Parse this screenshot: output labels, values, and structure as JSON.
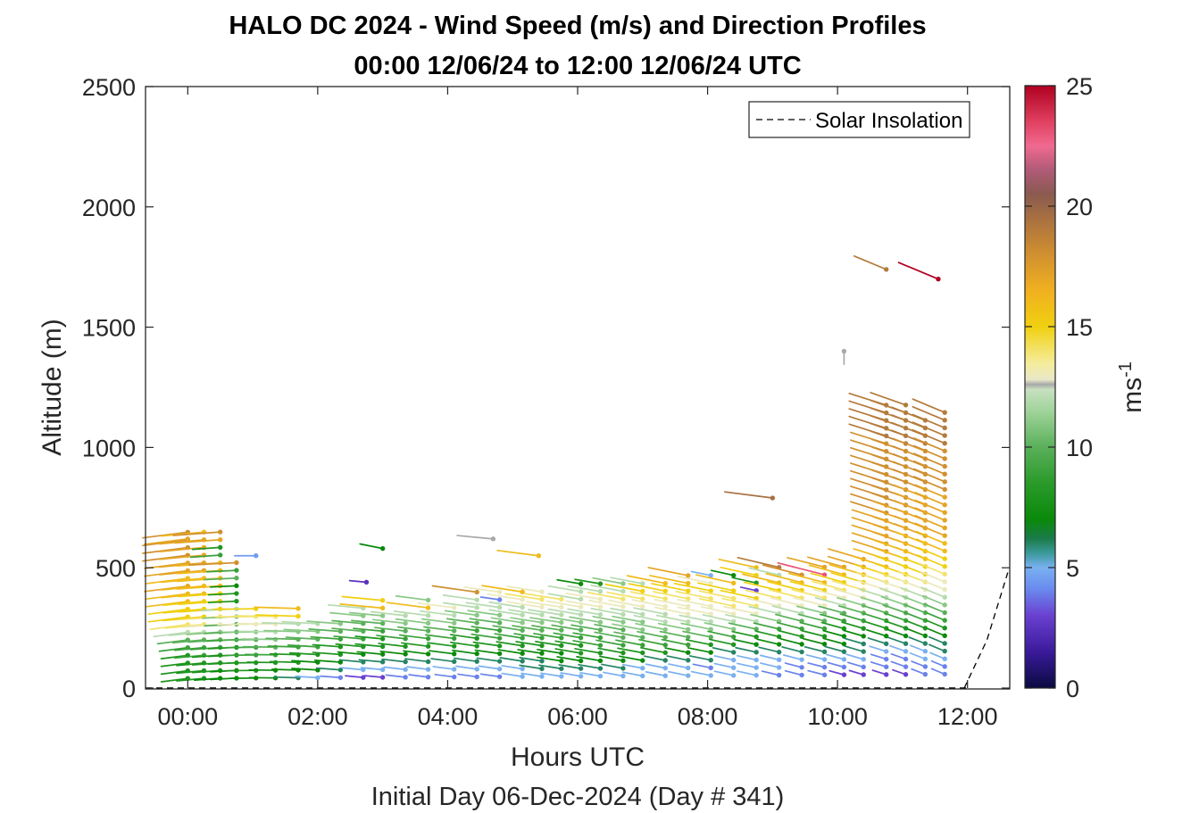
{
  "chart_data": {
    "type": "wind-barb-profile",
    "title": "HALO DC 2024 - Wind Speed (m/s) and Direction Profiles",
    "subtitle": "00:00 12/06/24 to 12:00 12/06/24  UTC",
    "xlabel": "Hours UTC",
    "ylabel": "Altitude (m)",
    "footer": "Initial Day 06-Dec-2024 (Day # 341)",
    "xlim_hours": [
      -0.65,
      12.65
    ],
    "ylim": [
      0,
      2500
    ],
    "x_ticks": [
      {
        "value": 0,
        "label": "00:00"
      },
      {
        "value": 2,
        "label": "02:00"
      },
      {
        "value": 4,
        "label": "04:00"
      },
      {
        "value": 6,
        "label": "06:00"
      },
      {
        "value": 8,
        "label": "08:00"
      },
      {
        "value": 10,
        "label": "10:00"
      },
      {
        "value": 12,
        "label": "12:00"
      }
    ],
    "y_ticks": [
      {
        "value": 0,
        "label": "0"
      },
      {
        "value": 500,
        "label": "500"
      },
      {
        "value": 1000,
        "label": "1000"
      },
      {
        "value": 1500,
        "label": "1500"
      },
      {
        "value": 2000,
        "label": "2000"
      },
      {
        "value": 2500,
        "label": "2500"
      }
    ],
    "legend": {
      "label": "Solar Insolation",
      "position": "top-right",
      "line_style": "dashed",
      "color": "#000000"
    },
    "colorbar": {
      "label": "ms",
      "label_exponent": "-1",
      "range": [
        0,
        25
      ],
      "ticks": [
        {
          "value": 0,
          "label": "0"
        },
        {
          "value": 5,
          "label": "5"
        },
        {
          "value": 10,
          "label": "10"
        },
        {
          "value": 15,
          "label": "15"
        },
        {
          "value": 20,
          "label": "20"
        },
        {
          "value": 25,
          "label": "25"
        }
      ],
      "stops": [
        {
          "value": 0,
          "color": "#0a0a40"
        },
        {
          "value": 1.5,
          "color": "#3a1a9a"
        },
        {
          "value": 3,
          "color": "#6a40d0"
        },
        {
          "value": 4.2,
          "color": "#6a8ff0"
        },
        {
          "value": 5,
          "color": "#7ab0f0"
        },
        {
          "value": 5.6,
          "color": "#3a9a9a"
        },
        {
          "value": 6.2,
          "color": "#1a7a4a"
        },
        {
          "value": 7,
          "color": "#0a8a0a"
        },
        {
          "value": 8.5,
          "color": "#2a9a2a"
        },
        {
          "value": 10,
          "color": "#5ab05a"
        },
        {
          "value": 11.5,
          "color": "#a0d49a"
        },
        {
          "value": 12.4,
          "color": "#c8e0c0"
        },
        {
          "value": 12.6,
          "color": "#a8a8a8"
        },
        {
          "value": 12.8,
          "color": "#e8e8c8"
        },
        {
          "value": 13.5,
          "color": "#f5ec9a"
        },
        {
          "value": 15,
          "color": "#f0d010"
        },
        {
          "value": 16.5,
          "color": "#f0b020"
        },
        {
          "value": 18,
          "color": "#d09030"
        },
        {
          "value": 19.5,
          "color": "#a87040"
        },
        {
          "value": 20.5,
          "color": "#8a5a50"
        },
        {
          "value": 21.5,
          "color": "#b05a78"
        },
        {
          "value": 22.5,
          "color": "#f06a90"
        },
        {
          "value": 23.5,
          "color": "#e04060"
        },
        {
          "value": 25,
          "color": "#b00020"
        }
      ]
    },
    "solar_insolation": [
      {
        "hour": 11.95,
        "alt": 0
      },
      {
        "hour": 12.3,
        "alt": 200
      },
      {
        "hour": 12.62,
        "alt": 480
      }
    ],
    "profiles": [
      {
        "hour": 0.0,
        "dir": 250,
        "speed": [
          8,
          8,
          8,
          8,
          9,
          10,
          12,
          14,
          15,
          15,
          16,
          16,
          17,
          16,
          17,
          17,
          18,
          18,
          18,
          18
        ]
      },
      {
        "hour": 0.25,
        "dir": 255,
        "speed": [
          8,
          8,
          8,
          9,
          9,
          10,
          12,
          14,
          15,
          15,
          15,
          16,
          16,
          16,
          17,
          17,
          17,
          17,
          17,
          16
        ]
      },
      {
        "hour": 0.5,
        "dir": 258,
        "speed": [
          7,
          8,
          8,
          8,
          9,
          10,
          11,
          13,
          14,
          15,
          15,
          15,
          16,
          16,
          16,
          16,
          9,
          8,
          17,
          18
        ]
      },
      {
        "hour": 0.75,
        "dir": 262,
        "speed": [
          7,
          7,
          8,
          8,
          8,
          9,
          10,
          10,
          11,
          12,
          8,
          8,
          7,
          10,
          9,
          18
        ]
      },
      {
        "hour": 1.05,
        "dir": 268,
        "speed": [
          7,
          8,
          8,
          9,
          9,
          10,
          11,
          13,
          14,
          15
        ]
      },
      {
        "hour": 1.35,
        "dir": 272,
        "speed": [
          7,
          7,
          8,
          9,
          10,
          11,
          12,
          13,
          14
        ]
      },
      {
        "hour": 1.7,
        "dir": 275,
        "speed": [
          6,
          7,
          8,
          8,
          9,
          10,
          11,
          12,
          15,
          16
        ]
      },
      {
        "hour": 2.0,
        "dir": 280,
        "speed": [
          5,
          7,
          7,
          8,
          9,
          10,
          11,
          12
        ]
      },
      {
        "hour": 2.35,
        "dir": 282,
        "speed": [
          4,
          6,
          7,
          8,
          8,
          9,
          10,
          11
        ]
      },
      {
        "hour": 2.7,
        "dir": 285,
        "speed": [
          3,
          5,
          6,
          7,
          8,
          9,
          10,
          10,
          11,
          12
        ]
      },
      {
        "hour": 3.0,
        "dir": 285,
        "speed": [
          3,
          5,
          6,
          7,
          8,
          8,
          9,
          10,
          11,
          16,
          15
        ]
      },
      {
        "hour": 3.35,
        "dir": 288,
        "speed": [
          4,
          5,
          6,
          7,
          8,
          9,
          10,
          11,
          12
        ]
      },
      {
        "hour": 3.7,
        "dir": 290,
        "speed": [
          4,
          5,
          6,
          7,
          8,
          9,
          10,
          11,
          12,
          16,
          11
        ]
      },
      {
        "hour": 4.1,
        "dir": 290,
        "speed": [
          4,
          5,
          6,
          7,
          8,
          9,
          10,
          11,
          12,
          13
        ]
      },
      {
        "hour": 4.45,
        "dir": 292,
        "speed": [
          4,
          5,
          6,
          7,
          8,
          8,
          9,
          10,
          11,
          12,
          12,
          18
        ]
      },
      {
        "hour": 4.8,
        "dir": 292,
        "speed": [
          4,
          5,
          6,
          7,
          8,
          9,
          9,
          10,
          11,
          12,
          4,
          13
        ]
      },
      {
        "hour": 5.15,
        "dir": 294,
        "speed": [
          5,
          5,
          6,
          7,
          8,
          9,
          10,
          11,
          12,
          12,
          13,
          16
        ]
      },
      {
        "hour": 5.45,
        "dir": 294,
        "speed": [
          5,
          6,
          6,
          7,
          8,
          9,
          10,
          11,
          12,
          13,
          14,
          13
        ]
      },
      {
        "hour": 5.75,
        "dir": 294,
        "speed": [
          5,
          6,
          7,
          7,
          8,
          9,
          10,
          11,
          12,
          13,
          14
        ]
      },
      {
        "hour": 6.05,
        "dir": 296,
        "speed": [
          5,
          6,
          7,
          8,
          8,
          9,
          10,
          11,
          12,
          13,
          12,
          12,
          7
        ]
      },
      {
        "hour": 6.35,
        "dir": 296,
        "speed": [
          5,
          6,
          7,
          8,
          9,
          9,
          10,
          11,
          12,
          13,
          13,
          12,
          8
        ]
      },
      {
        "hour": 6.7,
        "dir": 298,
        "speed": [
          5,
          6,
          7,
          8,
          9,
          10,
          10,
          11,
          12,
          13,
          14,
          12,
          11
        ]
      },
      {
        "hour": 7.0,
        "dir": 298,
        "speed": [
          5,
          5,
          7,
          8,
          9,
          10,
          11,
          11,
          12,
          13,
          14,
          15,
          12
        ]
      },
      {
        "hour": 7.35,
        "dir": 300,
        "speed": [
          5,
          5,
          6,
          8,
          9,
          10,
          11,
          12,
          12,
          13,
          14,
          15,
          16
        ]
      },
      {
        "hour": 7.7,
        "dir": 300,
        "speed": [
          5,
          5,
          6,
          7,
          9,
          10,
          11,
          12,
          13,
          13,
          14,
          15,
          16,
          17
        ]
      },
      {
        "hour": 8.05,
        "dir": 300,
        "speed": [
          5,
          4,
          6,
          7,
          8,
          10,
          11,
          12,
          13,
          13,
          14,
          15,
          13,
          5
        ]
      },
      {
        "hour": 8.4,
        "dir": 302,
        "speed": [
          5,
          5,
          5,
          6,
          8,
          9,
          11,
          12,
          13,
          14,
          14,
          15,
          16,
          7
        ]
      },
      {
        "hour": 8.75,
        "dir": 302,
        "speed": [
          5,
          5,
          5,
          6,
          7,
          8,
          10,
          12,
          13,
          14,
          15,
          3,
          8,
          15,
          16
        ]
      },
      {
        "hour": 9.1,
        "dir": 304,
        "speed": [
          4,
          5,
          5,
          6,
          7,
          8,
          9,
          11,
          12,
          13,
          14,
          15,
          16,
          12,
          19
        ]
      },
      {
        "hour": 9.45,
        "dir": 306,
        "speed": [
          4,
          4,
          5,
          6,
          7,
          8,
          9,
          10,
          12,
          13,
          14,
          15,
          16,
          18
        ]
      },
      {
        "hour": 9.8,
        "dir": 306,
        "speed": [
          4,
          4,
          5,
          6,
          7,
          8,
          9,
          10,
          11,
          13,
          14,
          15,
          16,
          23,
          17
        ]
      },
      {
        "hour": 10.1,
        "dir": 308,
        "speed": [
          3,
          4,
          5,
          6,
          7,
          7,
          8,
          9,
          10,
          12,
          13,
          14,
          15,
          16,
          17
        ]
      },
      {
        "hour": 10.4,
        "dir": 310,
        "speed": [
          3,
          4,
          5,
          6,
          6,
          7,
          8,
          9,
          10,
          11,
          13,
          14,
          15,
          16,
          17,
          17
        ]
      },
      {
        "hour": 10.75,
        "dir": 312,
        "speed": [
          3,
          4,
          4,
          5,
          6,
          7,
          8,
          9,
          10,
          11,
          12,
          13,
          14,
          15,
          16,
          16,
          17,
          17,
          17,
          17,
          17,
          18,
          18,
          18,
          18,
          18,
          18,
          18,
          18,
          18,
          18,
          19,
          19,
          19,
          19,
          19
        ]
      },
      {
        "hour": 11.05,
        "dir": 315,
        "speed": [
          3,
          4,
          4,
          5,
          6,
          7,
          8,
          9,
          10,
          11,
          12,
          13,
          14,
          15,
          15,
          16,
          16,
          17,
          17,
          17,
          17,
          17,
          18,
          18,
          18,
          18,
          18,
          18,
          18,
          18,
          19,
          19,
          19,
          19,
          19,
          19
        ]
      },
      {
        "hour": 11.35,
        "dir": 318,
        "speed": [
          4,
          4,
          5,
          5,
          6,
          7,
          8,
          9,
          10,
          11,
          12,
          13,
          14,
          15,
          15,
          16,
          16,
          16,
          17,
          17,
          17,
          17,
          17,
          17,
          18,
          18,
          18,
          18,
          18,
          18,
          19,
          19,
          19,
          19
        ]
      },
      {
        "hour": 11.65,
        "dir": 320,
        "speed": [
          4,
          4,
          5,
          6,
          6,
          7,
          8,
          9,
          10,
          11,
          12,
          13,
          13,
          14,
          15,
          15,
          16,
          16,
          17,
          17,
          17,
          17,
          17,
          17,
          18,
          18,
          18,
          18,
          18,
          18,
          19,
          19,
          19,
          19,
          19
        ]
      }
    ],
    "isolated_barbs": [
      {
        "hour": 0.0,
        "alt": 620,
        "dir": 250,
        "speed": 17
      },
      {
        "hour": 1.05,
        "alt": 550,
        "dir": 270,
        "speed": 4.5
      },
      {
        "hour": 2.75,
        "alt": 440,
        "dir": 285,
        "speed": 2.5
      },
      {
        "hour": 3.0,
        "alt": 580,
        "dir": 300,
        "speed": 7
      },
      {
        "hour": 4.7,
        "alt": 620,
        "dir": 285,
        "speed": 12.6
      },
      {
        "hour": 5.4,
        "alt": 550,
        "dir": 290,
        "speed": 16
      },
      {
        "hour": 10.1,
        "alt": 1400,
        "dir": 180,
        "speed": 12.6
      },
      {
        "hour": 9.0,
        "alt": 790,
        "dir": 290,
        "speed": 19.5
      },
      {
        "hour": 10.75,
        "alt": 1740,
        "dir": 320,
        "speed": 19
      },
      {
        "hour": 11.55,
        "alt": 1700,
        "dir": 320,
        "speed": 25
      }
    ]
  }
}
